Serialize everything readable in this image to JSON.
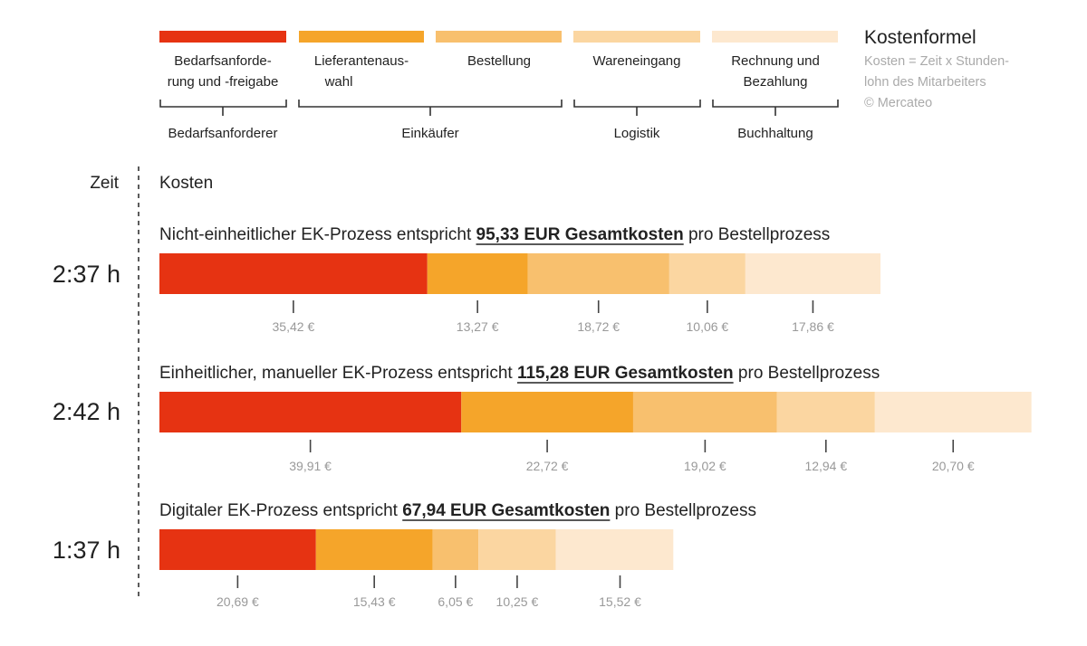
{
  "colors": {
    "stage1": "#e63312",
    "stage2": "#f5a52a",
    "stage3": "#f8c06e",
    "stage4": "#fbd6a1",
    "stage5": "#fde8cf"
  },
  "legend": {
    "stages": [
      {
        "line1": "Bedarfsanforde-",
        "line2": "rung und -freigabe"
      },
      {
        "line1": "Lieferantenaus-",
        "line2": "wahl"
      },
      {
        "line1": "Bestellung",
        "line2": ""
      },
      {
        "line1": "Wareneingang",
        "line2": ""
      },
      {
        "line1": "Rechnung und",
        "line2": "Bezahlung"
      }
    ],
    "groups": [
      "Bedarfsanforderer",
      "Einkäufer",
      "Logistik",
      "Buchhaltung"
    ]
  },
  "formula": {
    "title": "Kostenformel",
    "line1": "Kosten = Zeit x Stunden-",
    "line2": "lohn des Mitarbeiters",
    "line3": "© Mercateo"
  },
  "axis": {
    "time_header": "Zeit",
    "cost_header": "Kosten"
  },
  "chart_data": {
    "type": "bar",
    "orientation": "horizontal-stacked",
    "unit": "€",
    "stage_names": [
      "Bedarfsanforderung und -freigabe",
      "Lieferantenauswahl",
      "Bestellung",
      "Wareneingang",
      "Rechnung und Bezahlung"
    ],
    "series": [
      {
        "title_pre": "Nicht-einheitlicher EK-Prozess entspricht ",
        "title_total": "95,33 EUR Gesamtkosten",
        "title_post": " pro Bestellprozess",
        "time": "2:37 h",
        "values": [
          35.42,
          13.27,
          18.72,
          10.06,
          17.86
        ],
        "labels": [
          "35,42 €",
          "13,27 €",
          "18,72 €",
          "10,06 €",
          "17,86 €"
        ]
      },
      {
        "title_pre": "Einheitlicher, manueller EK-Prozess entspricht ",
        "title_total": "115,28 EUR Gesamtkosten",
        "title_post": " pro Bestellprozess",
        "time": "2:42 h",
        "values": [
          39.91,
          22.72,
          19.02,
          12.94,
          20.7
        ],
        "labels": [
          "39,91 €",
          "22,72 €",
          "19,02 €",
          "12,94 €",
          "20,70 €"
        ]
      },
      {
        "title_pre": "Digitaler EK-Prozess entspricht ",
        "title_total": "67,94 EUR Gesamtkosten",
        "title_post": " pro Bestellprozess",
        "time": "1:37 h",
        "values": [
          20.69,
          15.43,
          6.05,
          10.25,
          15.52
        ],
        "labels": [
          "20,69 €",
          "15,43 €",
          "6,05 €",
          "10,25 €",
          "15,52 €"
        ]
      }
    ]
  }
}
